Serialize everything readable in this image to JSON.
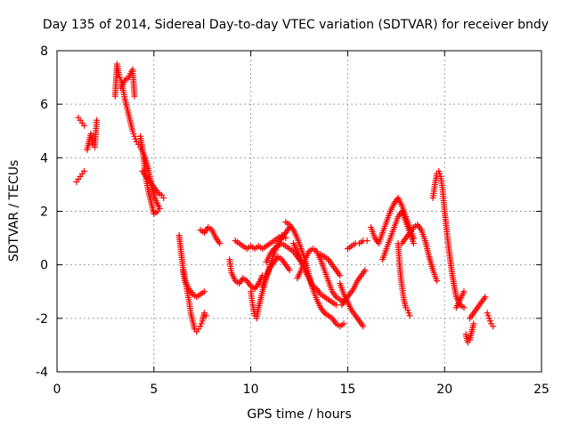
{
  "chart_data": {
    "type": "scatter",
    "title": "Day 135 of 2014, Sidereal Day-to-day VTEC variation (SDTVAR) for receiver bndy",
    "xlabel": "GPS time / hours",
    "ylabel": "SDTVAR / TECUs",
    "xlim": [
      0,
      25
    ],
    "ylim": [
      -4,
      8
    ],
    "xticks": [
      0,
      5,
      10,
      15,
      20,
      25
    ],
    "yticks": [
      -4,
      -2,
      0,
      2,
      4,
      6,
      8
    ],
    "xtick_labels": [
      "0",
      "5",
      "10",
      "15",
      "20",
      "25"
    ],
    "ytick_labels": [
      "-4",
      "-2",
      "0",
      "2",
      "4",
      "6",
      "8"
    ],
    "grid": true,
    "marker": "+",
    "color": "#ff0000",
    "series": [
      {
        "name": "s1",
        "x": [
          1.0,
          1.1,
          1.2,
          1.3,
          1.4
        ],
        "y": [
          3.1,
          3.2,
          3.3,
          3.4,
          3.5
        ]
      },
      {
        "name": "s2",
        "x": [
          1.1,
          1.2,
          1.3,
          1.4
        ],
        "y": [
          5.5,
          5.4,
          5.3,
          5.2
        ]
      },
      {
        "name": "s3",
        "x": [
          1.55,
          1.65,
          1.75,
          1.85,
          1.95,
          2.05
        ],
        "y": [
          4.3,
          4.6,
          4.9,
          4.5,
          4.4,
          5.4
        ]
      },
      {
        "name": "s4",
        "x": [
          3.0,
          3.1,
          3.2,
          3.3,
          3.4,
          3.5,
          3.6,
          3.7,
          3.8,
          3.9,
          4.0,
          4.1,
          4.2
        ],
        "y": [
          6.3,
          7.5,
          7.1,
          6.9,
          6.6,
          6.2,
          5.9,
          5.6,
          5.3,
          5.0,
          4.8,
          4.6,
          4.5
        ]
      },
      {
        "name": "s5",
        "x": [
          3.3,
          3.5,
          3.7,
          3.9,
          4.0
        ],
        "y": [
          6.6,
          6.9,
          7.0,
          7.3,
          6.3
        ]
      },
      {
        "name": "s6",
        "x": [
          4.3,
          4.4,
          4.5,
          4.6,
          4.7,
          4.8,
          4.9,
          5.0,
          5.2
        ],
        "y": [
          4.8,
          4.4,
          3.8,
          3.2,
          2.8,
          2.5,
          2.2,
          1.9,
          2.0
        ]
      },
      {
        "name": "s7",
        "x": [
          4.4,
          4.6,
          4.8,
          5.0,
          5.2,
          5.4,
          5.5
        ],
        "y": [
          3.5,
          3.3,
          3.1,
          2.9,
          2.7,
          2.6,
          2.5
        ]
      },
      {
        "name": "s8",
        "x": [
          4.3,
          4.5,
          4.7,
          4.9,
          5.1,
          5.3
        ],
        "y": [
          4.4,
          4.1,
          3.6,
          2.9,
          2.4,
          2.1
        ]
      },
      {
        "name": "s9",
        "x": [
          6.3,
          6.4,
          6.5,
          6.6,
          6.7,
          6.8,
          6.9,
          7.0,
          7.1,
          7.2,
          7.3,
          7.4,
          7.5,
          7.6,
          7.7
        ],
        "y": [
          1.1,
          0.5,
          -0.1,
          -0.5,
          -0.9,
          -1.3,
          -1.8,
          -2.1,
          -2.4,
          -2.5,
          -2.4,
          -2.3,
          -2.1,
          -1.8,
          -1.9
        ]
      },
      {
        "name": "s10",
        "x": [
          6.5,
          6.6,
          6.8,
          7.0,
          7.2,
          7.4,
          7.6
        ],
        "y": [
          -0.2,
          -0.6,
          -0.9,
          -1.1,
          -1.2,
          -1.1,
          -1.0
        ]
      },
      {
        "name": "s11",
        "x": [
          7.4,
          7.6,
          7.8,
          8.0,
          8.2,
          8.4
        ],
        "y": [
          1.3,
          1.2,
          1.4,
          1.3,
          1.0,
          0.8
        ]
      },
      {
        "name": "s12",
        "x": [
          8.9,
          9.0,
          9.2,
          9.4,
          9.6,
          9.8,
          10.0,
          10.2,
          10.4,
          10.6
        ],
        "y": [
          0.2,
          -0.3,
          -0.6,
          -0.7,
          -0.5,
          -0.6,
          -0.8,
          -0.9,
          -0.7,
          -0.4
        ]
      },
      {
        "name": "s13",
        "x": [
          9.2,
          9.4,
          9.6,
          9.8,
          10.0,
          10.2,
          10.4,
          10.6,
          10.8,
          11.0,
          11.2,
          11.4,
          11.6,
          11.8
        ],
        "y": [
          0.9,
          0.8,
          0.7,
          0.6,
          0.7,
          0.6,
          0.7,
          0.6,
          0.7,
          0.8,
          0.9,
          1.0,
          1.1,
          1.0
        ]
      },
      {
        "name": "s14",
        "x": [
          10.0,
          10.1,
          10.2,
          10.3,
          10.4,
          10.6,
          10.8,
          11.0,
          11.2,
          11.4,
          11.6,
          11.8,
          12.0
        ],
        "y": [
          -1.0,
          -1.5,
          -1.9,
          -2.0,
          -1.6,
          -1.0,
          -0.5,
          0.0,
          0.4,
          0.8,
          1.0,
          1.2,
          1.4
        ]
      },
      {
        "name": "s15",
        "x": [
          10.6,
          10.8,
          11.0,
          11.2,
          11.4,
          11.6,
          11.8,
          12.0
        ],
        "y": [
          -0.8,
          -0.4,
          -0.1,
          0.1,
          0.3,
          0.2,
          0.0,
          -0.2
        ]
      },
      {
        "name": "s16",
        "x": [
          10.8,
          11.0,
          11.2,
          11.4,
          11.6,
          11.8,
          12.0,
          12.2,
          12.4,
          12.6,
          12.8,
          13.0
        ],
        "y": [
          0.1,
          0.4,
          0.6,
          0.7,
          0.8,
          0.7,
          0.6,
          0.5,
          0.3,
          0.1,
          -0.2,
          -0.5
        ]
      },
      {
        "name": "s17",
        "x": [
          11.8,
          12.0,
          12.2,
          12.4,
          12.6,
          12.8,
          13.0,
          13.2,
          13.4,
          13.6,
          13.8,
          14.0,
          14.2,
          14.4,
          14.6,
          14.8
        ],
        "y": [
          1.6,
          1.5,
          1.3,
          1.0,
          0.6,
          0.2,
          -0.4,
          -0.9,
          -1.3,
          -1.6,
          -1.8,
          -1.9,
          -2.0,
          -2.2,
          -2.3,
          -2.2
        ]
      },
      {
        "name": "s18",
        "x": [
          12.2,
          12.4,
          12.6,
          12.8,
          13.0,
          13.2,
          13.4,
          13.6,
          13.8,
          14.0,
          14.2,
          14.4
        ],
        "y": [
          0.8,
          0.5,
          0.2,
          -0.2,
          -0.5,
          -0.8,
          -0.9,
          -1.1,
          -1.2,
          -1.3,
          -1.4,
          -1.5
        ]
      },
      {
        "name": "s19",
        "x": [
          12.4,
          12.6,
          12.8,
          13.0,
          13.2,
          13.4,
          13.6,
          13.8,
          14.0,
          14.2,
          14.4,
          14.6,
          14.8
        ],
        "y": [
          -0.5,
          -0.2,
          0.2,
          0.5,
          0.6,
          0.5,
          0.2,
          -0.2,
          -0.6,
          -1.0,
          -1.2,
          -1.3,
          -1.4
        ]
      },
      {
        "name": "s20",
        "x": [
          13.6,
          13.8,
          14.0,
          14.2,
          14.4,
          14.6
        ],
        "y": [
          0.4,
          0.3,
          0.2,
          0.0,
          -0.2,
          -0.4
        ]
      },
      {
        "name": "s21",
        "x": [
          14.6,
          14.8,
          15.0,
          15.2,
          15.4,
          15.6,
          15.8
        ],
        "y": [
          -0.7,
          -1.1,
          -1.4,
          -1.7,
          -1.9,
          -2.1,
          -2.3
        ]
      },
      {
        "name": "s22",
        "x": [
          14.7,
          14.9,
          15.1,
          15.3,
          15.5,
          15.7,
          15.9
        ],
        "y": [
          -1.5,
          -1.3,
          -1.1,
          -0.9,
          -0.6,
          -0.4,
          -0.2
        ]
      },
      {
        "name": "s23",
        "x": [
          15.0,
          15.2,
          15.4,
          15.6,
          15.8,
          16.0
        ],
        "y": [
          0.6,
          0.7,
          0.8,
          0.8,
          0.9,
          0.9
        ]
      },
      {
        "name": "s24",
        "x": [
          16.2,
          16.4,
          16.6,
          16.8,
          17.0,
          17.2,
          17.4,
          17.6,
          17.8,
          18.0,
          18.2,
          18.4
        ],
        "y": [
          1.4,
          1.0,
          0.8,
          1.2,
          1.6,
          2.0,
          2.3,
          2.5,
          2.2,
          1.8,
          1.4,
          1.0
        ]
      },
      {
        "name": "s25",
        "x": [
          16.8,
          17.0,
          17.2,
          17.4,
          17.6,
          17.8,
          18.0,
          18.2,
          18.4
        ],
        "y": [
          0.2,
          0.6,
          1.0,
          1.4,
          1.8,
          2.0,
          1.6,
          1.2,
          0.8
        ]
      },
      {
        "name": "s26",
        "x": [
          17.8,
          18.0,
          18.2,
          18.4,
          18.6,
          18.8,
          19.0,
          19.2,
          19.4,
          19.6
        ],
        "y": [
          0.8,
          1.0,
          1.2,
          1.4,
          1.5,
          1.3,
          0.9,
          0.3,
          -0.2,
          -0.6
        ]
      },
      {
        "name": "s27",
        "x": [
          17.6,
          17.7,
          17.8,
          17.9,
          18.0,
          18.1,
          18.2
        ],
        "y": [
          0.8,
          -0.2,
          -0.8,
          -1.3,
          -1.6,
          -1.7,
          -1.9
        ]
      },
      {
        "name": "s28",
        "x": [
          19.4,
          19.5,
          19.6,
          19.7,
          19.8,
          19.9,
          20.0,
          20.2,
          20.4,
          20.6,
          20.8,
          21.0
        ],
        "y": [
          2.5,
          3.0,
          3.4,
          3.5,
          3.3,
          2.8,
          2.0,
          0.7,
          -0.4,
          -1.2,
          -1.5,
          -1.6
        ]
      },
      {
        "name": "s29",
        "x": [
          20.6,
          20.8,
          21.0
        ],
        "y": [
          -1.6,
          -1.3,
          -1.0
        ]
      },
      {
        "name": "s30",
        "x": [
          21.1,
          21.2,
          21.3,
          21.4,
          21.5
        ],
        "y": [
          -2.6,
          -2.9,
          -2.8,
          -2.5,
          -2.2
        ]
      },
      {
        "name": "s31",
        "x": [
          21.3,
          21.5,
          21.7,
          21.9,
          22.1
        ],
        "y": [
          -2.0,
          -1.8,
          -1.6,
          -1.4,
          -1.2
        ]
      },
      {
        "name": "s32",
        "x": [
          22.2,
          22.3,
          22.4,
          22.5
        ],
        "y": [
          -1.8,
          -2.0,
          -2.2,
          -2.3
        ]
      }
    ]
  }
}
